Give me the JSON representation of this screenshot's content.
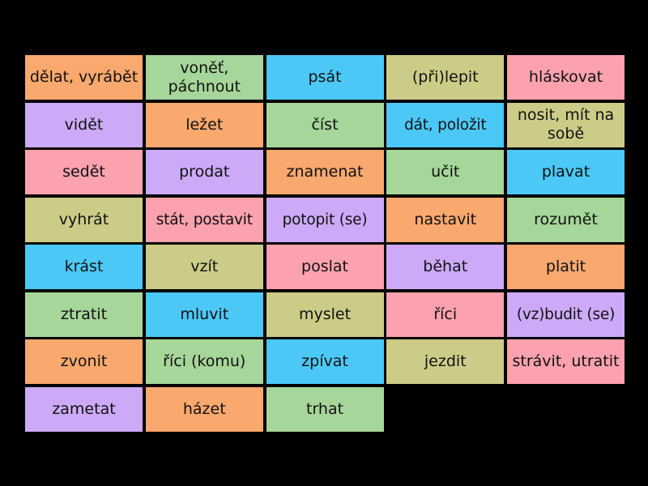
{
  "colors": {
    "orange": "#f9a86e",
    "green": "#a6d69a",
    "blue": "#4cc8f7",
    "olive": "#cccc88",
    "pink": "#fca2ae",
    "purple": "#ccaaf8",
    "background": "#000000"
  },
  "tiles": [
    {
      "label": "dělat, vyrábět",
      "color": "orange"
    },
    {
      "label": "voněť, páchnout",
      "color": "green"
    },
    {
      "label": "psát",
      "color": "blue"
    },
    {
      "label": "(při)lepit",
      "color": "olive"
    },
    {
      "label": "hláskovat",
      "color": "pink"
    },
    {
      "label": "vidět",
      "color": "purple"
    },
    {
      "label": "ležet",
      "color": "orange"
    },
    {
      "label": "číst",
      "color": "green"
    },
    {
      "label": "dát, položit",
      "color": "blue"
    },
    {
      "label": "nosit, mít na sobě",
      "color": "olive"
    },
    {
      "label": "sedět",
      "color": "pink"
    },
    {
      "label": "prodat",
      "color": "purple"
    },
    {
      "label": "znamenat",
      "color": "orange"
    },
    {
      "label": "učit",
      "color": "green"
    },
    {
      "label": "plavat",
      "color": "blue"
    },
    {
      "label": "vyhrát",
      "color": "olive"
    },
    {
      "label": "stát, postavit",
      "color": "pink"
    },
    {
      "label": "potopit (se)",
      "color": "purple"
    },
    {
      "label": "nastavit",
      "color": "orange"
    },
    {
      "label": "rozumět",
      "color": "green"
    },
    {
      "label": "krást",
      "color": "blue"
    },
    {
      "label": "vzít",
      "color": "olive"
    },
    {
      "label": "poslat",
      "color": "pink"
    },
    {
      "label": "běhat",
      "color": "purple"
    },
    {
      "label": "platit",
      "color": "orange"
    },
    {
      "label": "ztratit",
      "color": "green"
    },
    {
      "label": "mluvit",
      "color": "blue"
    },
    {
      "label": "myslet",
      "color": "olive"
    },
    {
      "label": "říci",
      "color": "pink"
    },
    {
      "label": "(vz)budit (se)",
      "color": "purple"
    },
    {
      "label": "zvonit",
      "color": "orange"
    },
    {
      "label": "říci (komu)",
      "color": "green"
    },
    {
      "label": "zpívat",
      "color": "blue"
    },
    {
      "label": "jezdit",
      "color": "olive"
    },
    {
      "label": "strávit, utratit",
      "color": "pink"
    },
    {
      "label": "zametat",
      "color": "purple"
    },
    {
      "label": "házet",
      "color": "orange"
    },
    {
      "label": "trhat",
      "color": "green"
    }
  ]
}
